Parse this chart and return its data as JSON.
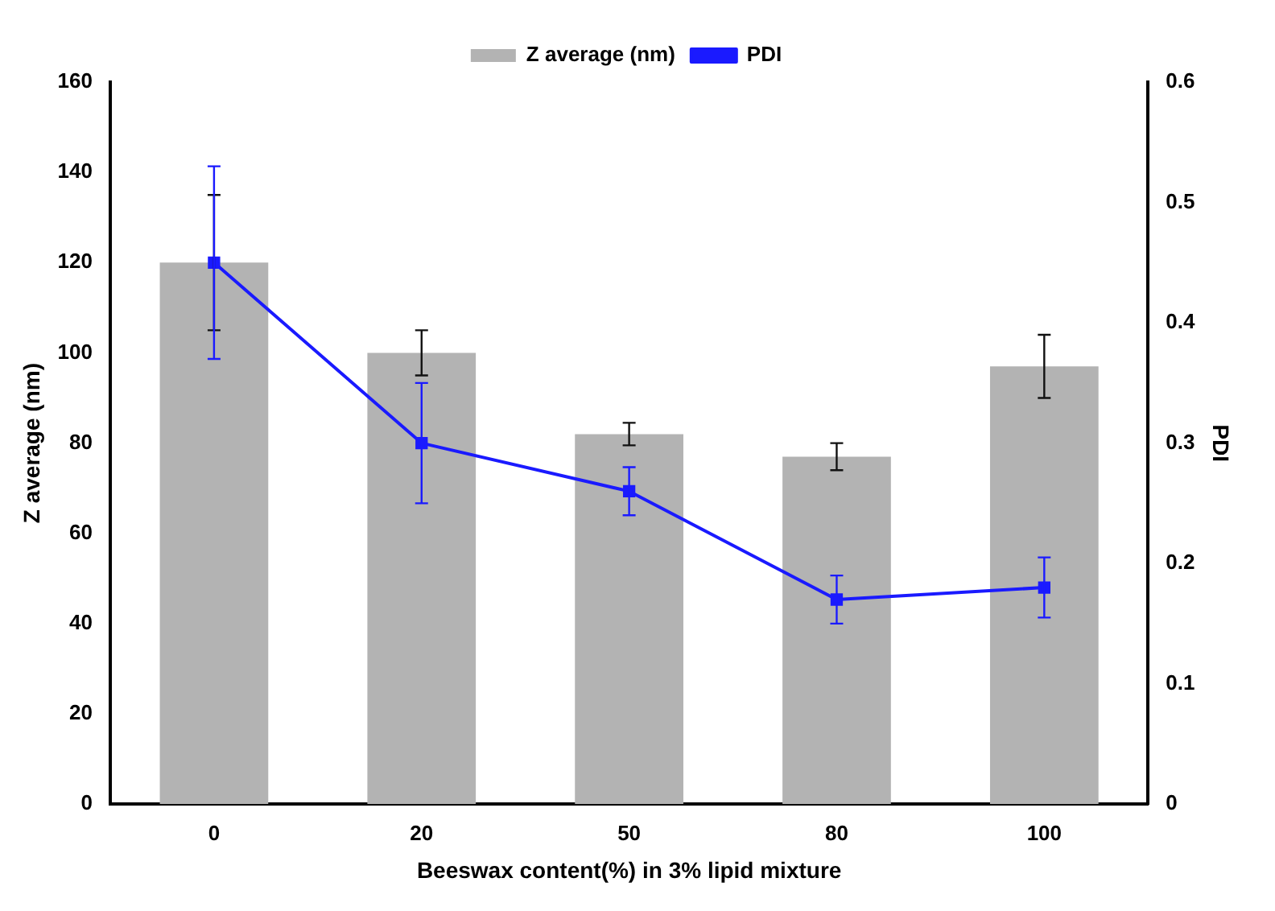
{
  "chart_data": {
    "type": "bar",
    "xlabel": "Beeswax content(%) in 3% lipid mixture",
    "ylabel": "Z average (nm)",
    "y2label": "PDI",
    "categories": [
      "0",
      "20",
      "50",
      "80",
      "100"
    ],
    "series": [
      {
        "name": "Z average (nm)",
        "color": "#b3b3b3",
        "values": [
          120,
          100,
          82,
          77,
          97
        ],
        "errors": [
          15,
          5,
          2.5,
          3,
          7
        ]
      },
      {
        "name": "PDI",
        "type": "line",
        "axis": "y2",
        "color": "#1a1aff",
        "values": [
          0.45,
          0.3,
          0.26,
          0.17,
          0.18
        ],
        "errors": [
          0.08,
          0.05,
          0.02,
          0.02,
          0.025
        ],
        "marker": "square"
      }
    ],
    "ylim": [
      0,
      160
    ],
    "yticks": [
      0,
      20,
      40,
      60,
      80,
      100,
      120,
      140,
      160
    ],
    "y2lim": [
      0,
      0.6
    ],
    "y2ticks": [
      0,
      0.1,
      0.2,
      0.3,
      0.4,
      0.5,
      0.6
    ],
    "grid": false,
    "legend": "top"
  }
}
